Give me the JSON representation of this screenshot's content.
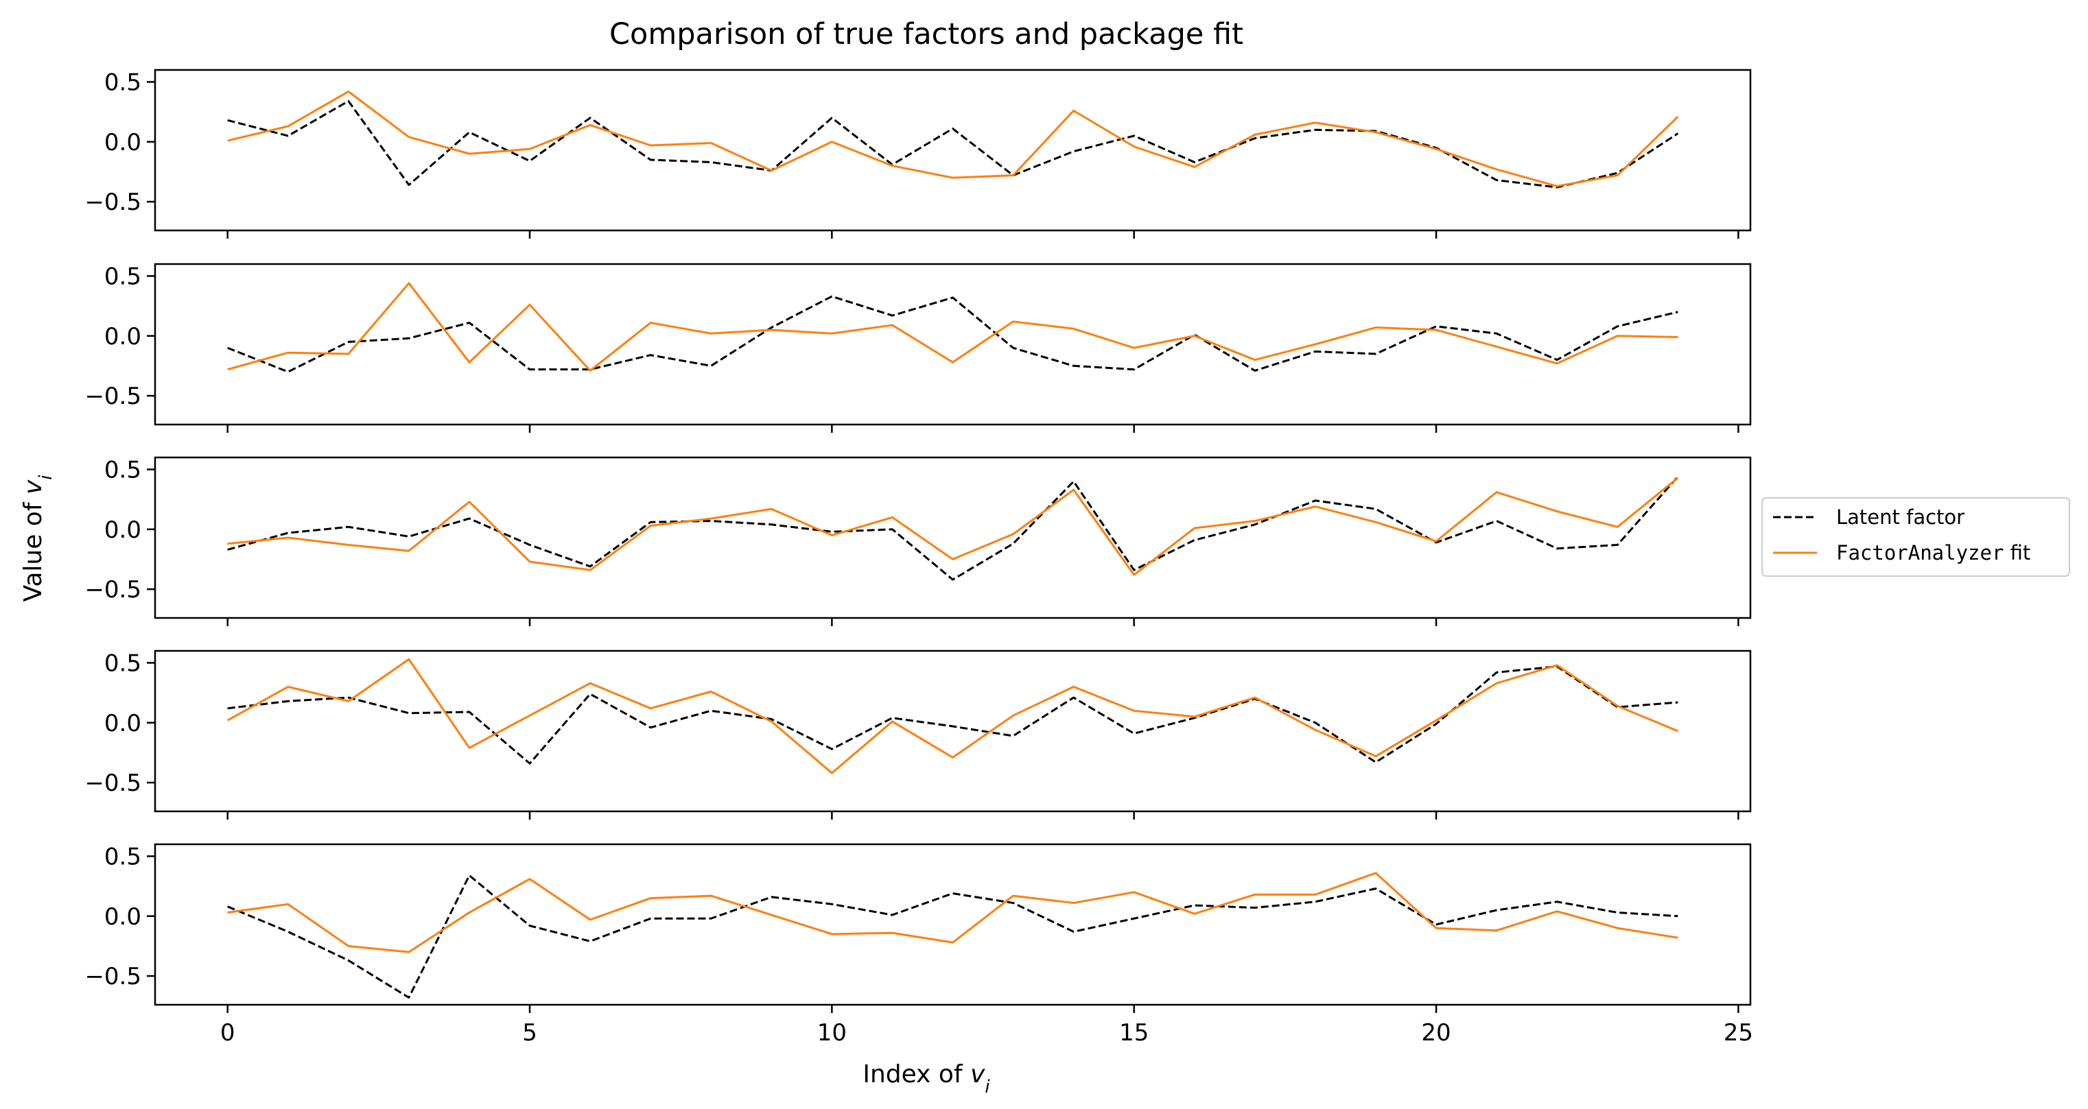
{
  "chart_data": {
    "type": "line",
    "title": "Comparison of true factors and package fit",
    "xlabel": "Index of v_i",
    "ylabel": "Value of v_i",
    "xlim": [
      -1.2,
      25.2
    ],
    "ylim": [
      -0.74,
      0.6
    ],
    "xticks": [
      0,
      5,
      10,
      15,
      20,
      25
    ],
    "yticks": [
      0.5,
      0.0,
      -0.5
    ],
    "grid": false,
    "legend": {
      "placement": "right",
      "entries": [
        {
          "label": "Latent factor",
          "color": "#000000",
          "style": "dashed"
        },
        {
          "label_code": "FactorAnalyzer",
          "label_suffix": " fit",
          "color": "#ff7f0e",
          "style": "solid"
        }
      ]
    },
    "x": [
      0,
      1,
      2,
      3,
      4,
      5,
      6,
      7,
      8,
      9,
      10,
      11,
      12,
      13,
      14,
      15,
      16,
      17,
      18,
      19,
      20,
      21,
      22,
      23,
      24
    ],
    "panels": [
      {
        "series": [
          {
            "name": "Latent factor",
            "values": [
              0.18,
              0.05,
              0.34,
              -0.36,
              0.08,
              -0.16,
              0.2,
              -0.15,
              -0.17,
              -0.24,
              0.2,
              -0.19,
              0.11,
              -0.28,
              -0.08,
              0.05,
              -0.17,
              0.03,
              0.1,
              0.09,
              -0.05,
              -0.32,
              -0.38,
              -0.26,
              0.07
            ]
          },
          {
            "name": "FactorAnalyzer fit",
            "values": [
              0.01,
              0.13,
              0.42,
              0.04,
              -0.1,
              -0.06,
              0.14,
              -0.03,
              -0.01,
              -0.24,
              0.0,
              -0.2,
              -0.3,
              -0.28,
              0.26,
              -0.04,
              -0.21,
              0.06,
              0.16,
              0.08,
              -0.06,
              -0.23,
              -0.37,
              -0.28,
              0.21
            ]
          }
        ]
      },
      {
        "series": [
          {
            "name": "Latent factor",
            "values": [
              -0.1,
              -0.3,
              -0.05,
              -0.02,
              0.11,
              -0.28,
              -0.28,
              -0.16,
              -0.25,
              0.07,
              0.33,
              0.17,
              0.32,
              -0.1,
              -0.25,
              -0.28,
              0.01,
              -0.29,
              -0.13,
              -0.15,
              0.08,
              0.02,
              -0.2,
              0.08,
              0.2
            ]
          },
          {
            "name": "FactorAnalyzer fit",
            "values": [
              -0.28,
              -0.14,
              -0.15,
              0.44,
              -0.22,
              0.26,
              -0.29,
              0.11,
              0.02,
              0.05,
              0.02,
              0.09,
              -0.22,
              0.12,
              0.06,
              -0.1,
              0.0,
              -0.2,
              -0.07,
              0.07,
              0.05,
              -0.09,
              -0.23,
              0.0,
              -0.01
            ]
          }
        ]
      },
      {
        "series": [
          {
            "name": "Latent factor",
            "values": [
              -0.17,
              -0.03,
              0.02,
              -0.06,
              0.09,
              -0.13,
              -0.31,
              0.06,
              0.07,
              0.04,
              -0.02,
              0.0,
              -0.42,
              -0.12,
              0.4,
              -0.34,
              -0.09,
              0.04,
              0.24,
              0.17,
              -0.11,
              0.07,
              -0.16,
              -0.13,
              0.44
            ]
          },
          {
            "name": "FactorAnalyzer fit",
            "values": [
              -0.12,
              -0.07,
              -0.13,
              -0.18,
              0.23,
              -0.27,
              -0.34,
              0.03,
              0.09,
              0.17,
              -0.05,
              0.1,
              -0.25,
              -0.04,
              0.33,
              -0.38,
              0.01,
              0.07,
              0.19,
              0.06,
              -0.1,
              0.31,
              0.15,
              0.02,
              0.43
            ]
          }
        ]
      },
      {
        "series": [
          {
            "name": "Latent factor",
            "values": [
              0.12,
              0.18,
              0.21,
              0.08,
              0.09,
              -0.34,
              0.24,
              -0.04,
              0.1,
              0.03,
              -0.22,
              0.04,
              -0.03,
              -0.11,
              0.21,
              -0.09,
              0.04,
              0.2,
              0.0,
              -0.33,
              -0.01,
              0.42,
              0.47,
              0.13,
              0.17
            ]
          },
          {
            "name": "FactorAnalyzer fit",
            "values": [
              0.02,
              0.3,
              0.18,
              0.53,
              -0.21,
              0.06,
              0.33,
              0.12,
              0.26,
              0.01,
              -0.42,
              0.01,
              -0.29,
              0.06,
              0.3,
              0.1,
              0.05,
              0.21,
              -0.06,
              -0.28,
              0.02,
              0.33,
              0.48,
              0.14,
              -0.07
            ]
          }
        ]
      },
      {
        "series": [
          {
            "name": "Latent factor",
            "values": [
              0.08,
              -0.13,
              -0.37,
              -0.68,
              0.34,
              -0.08,
              -0.21,
              -0.02,
              -0.02,
              0.16,
              0.1,
              0.01,
              0.19,
              0.11,
              -0.13,
              -0.02,
              0.09,
              0.07,
              0.12,
              0.23,
              -0.07,
              0.05,
              0.12,
              0.03,
              0.0
            ]
          },
          {
            "name": "FactorAnalyzer fit",
            "values": [
              0.03,
              0.1,
              -0.25,
              -0.3,
              0.03,
              0.31,
              -0.03,
              0.15,
              0.17,
              0.01,
              -0.15,
              -0.14,
              -0.22,
              0.17,
              0.11,
              0.2,
              0.02,
              0.18,
              0.18,
              0.36,
              -0.1,
              -0.12,
              0.04,
              -0.1,
              -0.18
            ]
          }
        ]
      }
    ]
  }
}
